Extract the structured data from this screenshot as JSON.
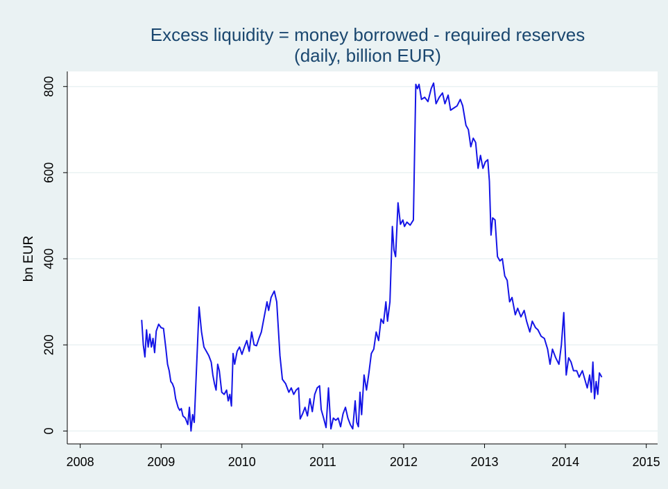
{
  "chart_data": {
    "type": "line",
    "title": "Excess liquidity = money borrowed - required reserves",
    "subtitle": "(daily, billion EUR)",
    "y_label": "bn EUR",
    "color": "#1414e6",
    "x": [
      2008.76,
      2008.78,
      2008.8,
      2008.82,
      2008.84,
      2008.86,
      2008.88,
      2008.9,
      2008.92,
      2008.94,
      2008.97,
      2009.0,
      2009.03,
      2009.06,
      2009.08,
      2009.1,
      2009.12,
      2009.14,
      2009.16,
      2009.18,
      2009.21,
      2009.23,
      2009.25,
      2009.27,
      2009.3,
      2009.33,
      2009.35,
      2009.37,
      2009.39,
      2009.41,
      2009.47,
      2009.5,
      2009.53,
      2009.56,
      2009.59,
      2009.62,
      2009.64,
      2009.66,
      2009.68,
      2009.7,
      2009.72,
      2009.75,
      2009.78,
      2009.81,
      2009.83,
      2009.85,
      2009.87,
      2009.89,
      2009.91,
      2009.94,
      2009.97,
      2010.0,
      2010.03,
      2010.06,
      2010.09,
      2010.12,
      2010.15,
      2010.18,
      2010.21,
      2010.24,
      2010.27,
      2010.31,
      2010.33,
      2010.36,
      2010.4,
      2010.43,
      2010.47,
      2010.5,
      2010.54,
      2010.58,
      2010.61,
      2010.64,
      2010.67,
      2010.7,
      2010.72,
      2010.75,
      2010.78,
      2010.81,
      2010.84,
      2010.87,
      2010.9,
      2010.93,
      2010.96,
      2010.98,
      2011.01,
      2011.04,
      2011.07,
      2011.1,
      2011.13,
      2011.16,
      2011.19,
      2011.22,
      2011.25,
      2011.28,
      2011.31,
      2011.34,
      2011.37,
      2011.4,
      2011.42,
      2011.44,
      2011.46,
      2011.48,
      2011.51,
      2011.54,
      2011.57,
      2011.6,
      2011.63,
      2011.66,
      2011.69,
      2011.72,
      2011.75,
      2011.78,
      2011.8,
      2011.83,
      2011.86,
      2011.88,
      2011.9,
      2011.93,
      2011.96,
      2011.99,
      2012.01,
      2012.04,
      2012.08,
      2012.12,
      2012.15,
      2012.17,
      2012.19,
      2012.22,
      2012.26,
      2012.3,
      2012.34,
      2012.37,
      2012.4,
      2012.44,
      2012.48,
      2012.51,
      2012.55,
      2012.58,
      2012.62,
      2012.66,
      2012.7,
      2012.73,
      2012.77,
      2012.8,
      2012.83,
      2012.86,
      2012.89,
      2012.92,
      2012.95,
      2012.98,
      2013.01,
      2013.04,
      2013.06,
      2013.08,
      2013.1,
      2013.13,
      2013.16,
      2013.19,
      2013.22,
      2013.25,
      2013.28,
      2013.31,
      2013.34,
      2013.38,
      2013.41,
      2013.45,
      2013.49,
      2013.52,
      2013.56,
      2013.59,
      2013.63,
      2013.66,
      2013.7,
      2013.74,
      2013.78,
      2013.81,
      2013.84,
      2013.88,
      2013.92,
      2013.95,
      2013.98,
      2014.01,
      2014.04,
      2014.07,
      2014.1,
      2014.14,
      2014.17,
      2014.21,
      2014.24,
      2014.27,
      2014.3,
      2014.32,
      2014.34,
      2014.36,
      2014.38,
      2014.4,
      2014.42,
      2014.45
    ],
    "values": [
      258,
      200,
      172,
      235,
      195,
      225,
      195,
      215,
      182,
      232,
      248,
      240,
      238,
      190,
      155,
      140,
      115,
      110,
      100,
      75,
      55,
      48,
      52,
      35,
      30,
      15,
      55,
      0,
      38,
      20,
      288,
      230,
      195,
      185,
      175,
      160,
      130,
      110,
      95,
      155,
      140,
      90,
      85,
      95,
      70,
      85,
      58,
      180,
      155,
      185,
      195,
      178,
      195,
      210,
      185,
      230,
      200,
      198,
      215,
      230,
      260,
      300,
      280,
      310,
      325,
      300,
      175,
      120,
      110,
      90,
      100,
      85,
      95,
      100,
      28,
      40,
      55,
      35,
      75,
      45,
      85,
      100,
      105,
      50,
      30,
      8,
      100,
      5,
      30,
      25,
      30,
      10,
      40,
      55,
      30,
      15,
      5,
      70,
      20,
      10,
      90,
      38,
      130,
      95,
      135,
      180,
      190,
      230,
      210,
      260,
      250,
      300,
      255,
      300,
      475,
      420,
      405,
      530,
      480,
      490,
      475,
      485,
      478,
      490,
      805,
      795,
      805,
      770,
      775,
      765,
      795,
      808,
      760,
      775,
      785,
      760,
      780,
      745,
      750,
      755,
      770,
      755,
      710,
      700,
      660,
      680,
      670,
      610,
      640,
      610,
      625,
      630,
      580,
      455,
      495,
      490,
      405,
      395,
      400,
      360,
      350,
      300,
      310,
      270,
      285,
      265,
      280,
      255,
      230,
      255,
      240,
      235,
      220,
      215,
      190,
      155,
      190,
      170,
      155,
      200,
      275,
      130,
      170,
      160,
      140,
      140,
      125,
      140,
      120,
      100,
      130,
      90,
      160,
      75,
      115,
      85,
      135,
      125
    ],
    "xlim": [
      2007.84,
      2015.14
    ],
    "xticks": [
      2008,
      2009,
      2010,
      2011,
      2012,
      2013,
      2014,
      2015
    ],
    "ylim": [
      -30,
      835
    ],
    "yticks": [
      0,
      200,
      400,
      600,
      800
    ],
    "grid": true
  }
}
